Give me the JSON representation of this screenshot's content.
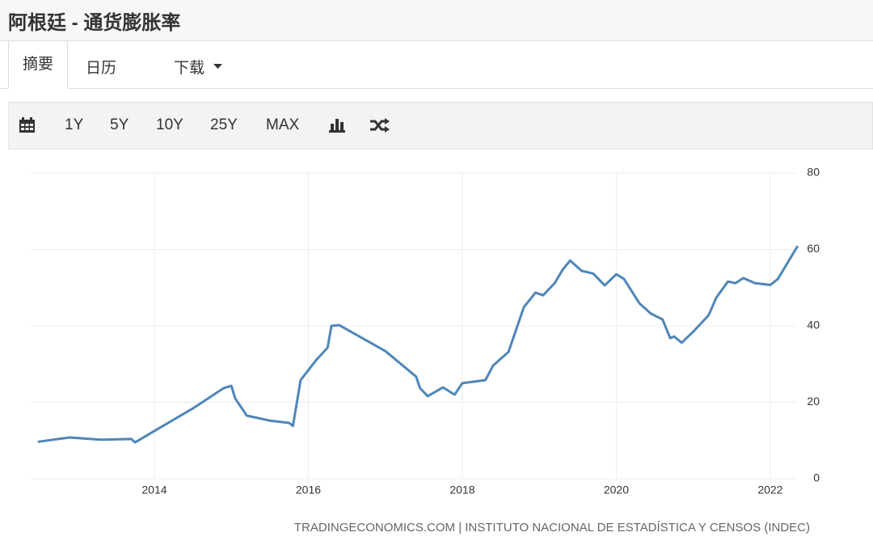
{
  "header": {
    "title": "阿根廷 - 通货膨胀率"
  },
  "tabs": [
    "摘要",
    "日历",
    "下载"
  ],
  "toolbar": {
    "ranges": [
      "1Y",
      "5Y",
      "10Y",
      "25Y",
      "MAX"
    ]
  },
  "chart_data": {
    "type": "line",
    "x": [
      2012.5,
      2012.9,
      2013.3,
      2013.7,
      2013.75,
      2014.0,
      2014.5,
      2014.9,
      2015.0,
      2015.05,
      2015.2,
      2015.5,
      2015.75,
      2015.8,
      2015.9,
      2016.1,
      2016.25,
      2016.3,
      2016.4,
      2017.0,
      2017.4,
      2017.45,
      2017.55,
      2017.75,
      2017.9,
      2018.0,
      2018.3,
      2018.4,
      2018.6,
      2018.8,
      2018.95,
      2019.05,
      2019.2,
      2019.3,
      2019.4,
      2019.55,
      2019.7,
      2019.85,
      2020.0,
      2020.1,
      2020.3,
      2020.45,
      2020.6,
      2020.7,
      2020.75,
      2020.85,
      2021.0,
      2021.2,
      2021.3,
      2021.45,
      2021.55,
      2021.65,
      2021.8,
      2022.0,
      2022.1,
      2022.35
    ],
    "series": [
      {
        "name": "通货膨胀率",
        "color": "#4f86b8",
        "values": [
          9.7,
          10.8,
          10.2,
          10.4,
          9.5,
          12.5,
          18.4,
          23.7,
          24.3,
          21,
          16.5,
          15.2,
          14.6,
          13.8,
          25.8,
          31,
          34.3,
          40,
          40.2,
          33.4,
          26.7,
          23.7,
          21.6,
          23.9,
          22,
          25,
          25.8,
          29.6,
          33.2,
          44.9,
          48.7,
          48,
          51.2,
          54.6,
          57.1,
          54.4,
          53.7,
          50.6,
          53.5,
          52.3,
          45.9,
          43.2,
          41.7,
          36.8,
          37.2,
          35.6,
          38.5,
          42.8,
          47.4,
          51.6,
          51.2,
          52.5,
          51.2,
          50.7,
          52.3,
          60.7
        ]
      }
    ],
    "xlim": [
      2012.4,
      2022.4
    ],
    "xticks": [
      2014,
      2016,
      2018,
      2020,
      2022
    ],
    "ylim": [
      0,
      80
    ],
    "yticks": [
      0,
      20,
      40,
      60,
      80
    ],
    "grid": true
  },
  "source": "TRADINGECONOMICS.COM | INSTITUTO NACIONAL DE ESTADÍSTICA Y CENSOS (INDEC)"
}
